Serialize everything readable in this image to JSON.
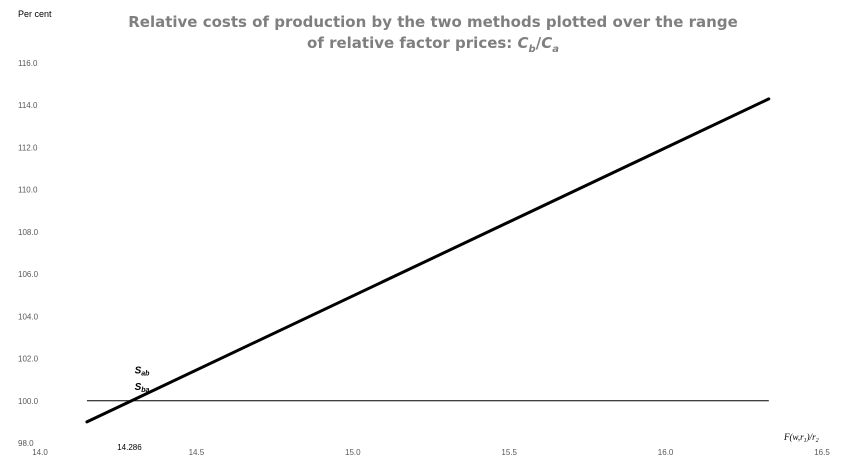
{
  "chart_data": {
    "type": "line",
    "title_lines": [
      "Relative costs of production by the two methods plotted over the range",
      "of relative factor prices: Cb/Ca"
    ],
    "title_suffix": {
      "c1": "C",
      "s1": "b",
      "slash": "/",
      "c2": "C",
      "s2": "a"
    },
    "ylabel": "Per cent",
    "xlabel": {
      "pre": "F(w",
      "s1": "r",
      "sub1": "1",
      "mid": ")/r",
      "sub2": "2"
    },
    "xlim": [
      14.0,
      16.5
    ],
    "ylim": [
      98.0,
      116.0
    ],
    "x_ticks": [
      "14.0",
      "14.5",
      "15.0",
      "15.5",
      "16.0",
      "16.5"
    ],
    "y_ticks": [
      "98.0",
      "100.0",
      "102.0",
      "104.0",
      "106.0",
      "108.0",
      "110.0",
      "112.0",
      "114.0",
      "116.0"
    ],
    "grid": false,
    "series": [
      {
        "x": [
          14.15,
          16.33
        ],
        "y": [
          99.0,
          114.3
        ],
        "color": "#000000"
      }
    ],
    "reference_line": {
      "y": 100.0,
      "x_range": [
        14.15,
        16.33
      ],
      "color": "#000000"
    },
    "annotations": {
      "sab": {
        "base": "S",
        "sub": "ab",
        "x": 14.36,
        "y": 101.3
      },
      "sba": {
        "base": "S",
        "sub": "ba",
        "x": 14.36,
        "y": 100.5
      },
      "crossover": {
        "text": "14.286",
        "x": 14.286
      }
    }
  }
}
